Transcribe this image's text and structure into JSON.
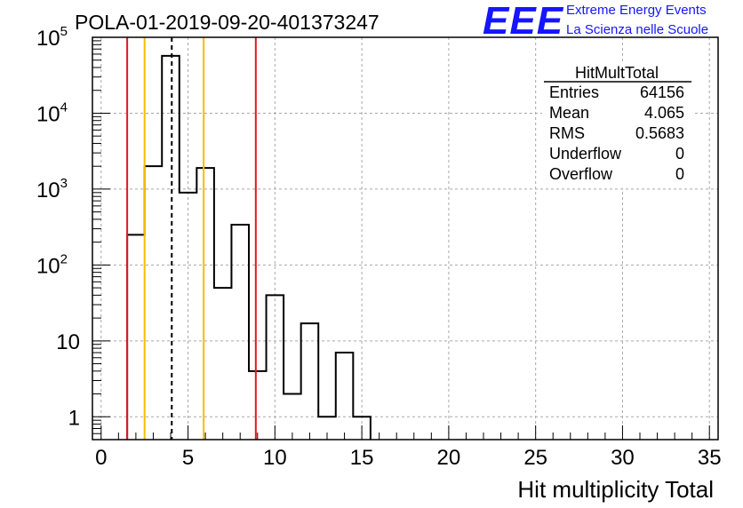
{
  "run_title": "POLA-01-2019-09-20-401373247",
  "logo": {
    "mark": "EEE",
    "line1": "Extreme Energy Events",
    "line2": "La Scienza nelle Scuole",
    "color": "#1515ff"
  },
  "stats": {
    "title": "HitMultTotal",
    "rows": [
      {
        "label": "Entries",
        "value": "64156"
      },
      {
        "label": "Mean",
        "value": "4.065"
      },
      {
        "label": "RMS",
        "value": "0.5683"
      },
      {
        "label": "Underflow",
        "value": "0"
      },
      {
        "label": "Overflow",
        "value": "0"
      }
    ]
  },
  "chart_data": {
    "type": "bar",
    "style": "step-histogram",
    "title": "POLA-01-2019-09-20-401373247",
    "xlabel": "Hit multiplicity Total",
    "ylabel": "",
    "xlim": [
      -0.5,
      35.5
    ],
    "ylim": [
      0.5,
      100000
    ],
    "yscale": "log",
    "grid": true,
    "bin_edges": [
      1.5,
      2.5,
      3.5,
      4.5,
      5.5,
      6.5,
      7.5,
      8.5,
      9.5,
      10.5,
      11.5,
      12.5,
      13.5,
      14.5,
      15.5
    ],
    "bin_centers": [
      2,
      3,
      4,
      5,
      6,
      7,
      8,
      9,
      10,
      11,
      12,
      13,
      14,
      15
    ],
    "values": [
      250,
      2000,
      57000,
      900,
      1900,
      50,
      340,
      4,
      40,
      2,
      17,
      1,
      7,
      1
    ],
    "x_ticks": [
      0,
      5,
      10,
      15,
      20,
      25,
      30,
      35
    ],
    "x_tick_labels": [
      "0",
      "5",
      "10",
      "15",
      "20",
      "25",
      "30",
      "35"
    ],
    "y_ticks": [
      1,
      10,
      100,
      1000,
      10000,
      100000
    ],
    "y_tick_labels": [
      {
        "base": "1",
        "exp": ""
      },
      {
        "base": "10",
        "exp": ""
      },
      {
        "base": "10",
        "exp": "2"
      },
      {
        "base": "10",
        "exp": "3"
      },
      {
        "base": "10",
        "exp": "4"
      },
      {
        "base": "10",
        "exp": "5"
      }
    ],
    "reference_lines": [
      {
        "x": 1.5,
        "color": "#e0191d",
        "style": "solid"
      },
      {
        "x": 2.5,
        "color": "#f0c000",
        "style": "solid"
      },
      {
        "x": 4.065,
        "color": "#000000",
        "style": "dashed"
      },
      {
        "x": 5.9,
        "color": "#f0c000",
        "style": "solid"
      },
      {
        "x": 8.9,
        "color": "#e0191d",
        "style": "solid"
      }
    ]
  }
}
